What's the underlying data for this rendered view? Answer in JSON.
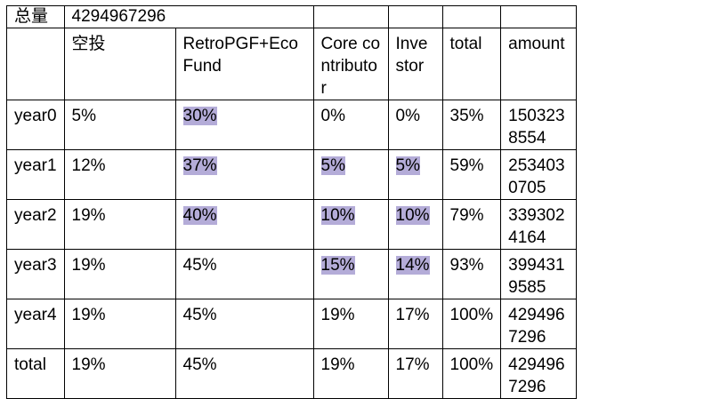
{
  "summary": {
    "label": "总量",
    "value": "4294967296"
  },
  "headers": [
    "",
    "空投",
    "RetroPGF+Eco Fund",
    "Core contributor",
    "Investor",
    "total",
    "amount"
  ],
  "rows": [
    {
      "label": "year0",
      "cells": [
        "5%",
        "30%",
        "0%",
        "0%",
        "35%",
        "1503238554"
      ]
    },
    {
      "label": "year1",
      "cells": [
        "12%",
        "37%",
        "5%",
        "5%",
        "59%",
        "2534030705"
      ]
    },
    {
      "label": "year2",
      "cells": [
        "19%",
        "40%",
        "10%",
        "10%",
        "79%",
        "3393024164"
      ]
    },
    {
      "label": "year3",
      "cells": [
        "19%",
        "45%",
        "15%",
        "14%",
        "93%",
        "3994319585"
      ]
    },
    {
      "label": "year4",
      "cells": [
        "19%",
        "45%",
        "19%",
        "17%",
        "100%",
        "4294967296"
      ]
    },
    {
      "label": "total",
      "cells": [
        "19%",
        "45%",
        "19%",
        "17%",
        "100%",
        "4294967296"
      ]
    }
  ],
  "highlight_color": "#b4acd8"
}
